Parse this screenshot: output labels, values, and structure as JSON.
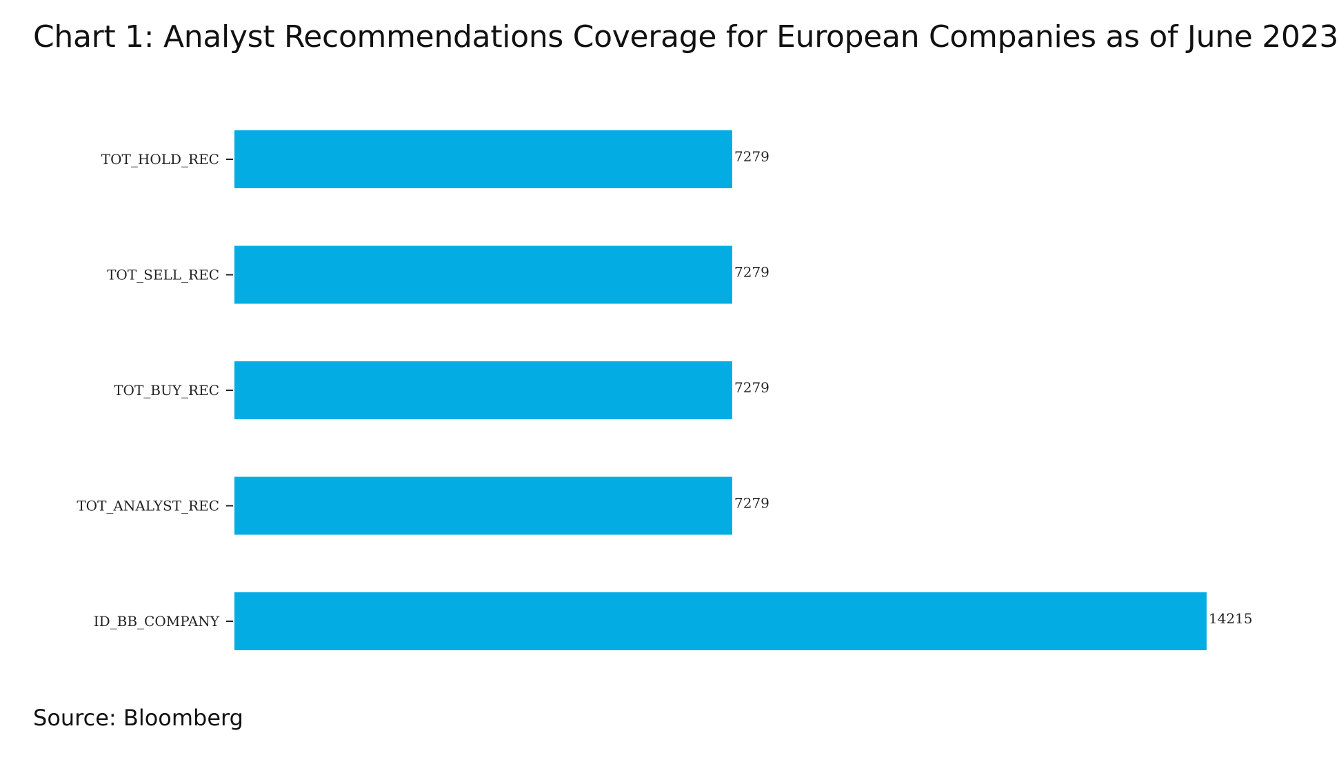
{
  "title": "Chart 1: Analyst Recommendations Coverage for European Companies as of June 2023",
  "source": "Source: Bloomberg",
  "chart_data": {
    "type": "bar",
    "orientation": "horizontal",
    "title": "Chart 1: Analyst Recommendations Coverage for European Companies as of June 2023",
    "categories": [
      "TOT_HOLD_REC",
      "TOT_SELL_REC",
      "TOT_BUY_REC",
      "TOT_ANALYST_REC",
      "ID_BB_COMPANY"
    ],
    "values": [
      7279,
      7279,
      7279,
      7279,
      14215
    ],
    "data_labels": [
      "7279",
      "7279",
      "7279",
      "7279",
      "14215"
    ],
    "xlim": [
      0,
      14215
    ],
    "grid": false,
    "legend": "none",
    "bar_color": "#03ADE3"
  }
}
